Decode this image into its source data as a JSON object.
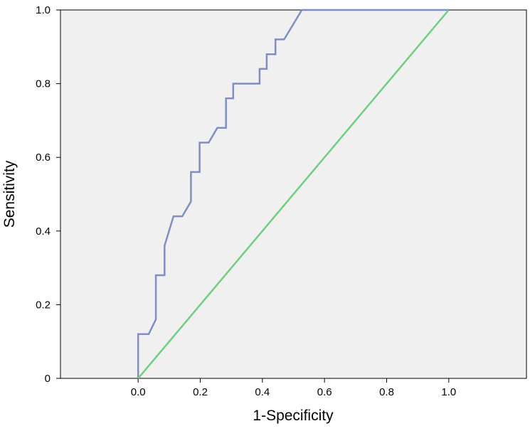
{
  "chart_data": {
    "type": "line",
    "title": "",
    "xlabel": "1-Specificity",
    "ylabel": "Sensitivity",
    "xlim": [
      -0.25,
      1.25
    ],
    "ylim": [
      0,
      1.0
    ],
    "x_ticks": [
      {
        "value": 0.0,
        "label": "0.0"
      },
      {
        "value": 0.2,
        "label": "0.2"
      },
      {
        "value": 0.4,
        "label": "0.4"
      },
      {
        "value": 0.6,
        "label": "0.6"
      },
      {
        "value": 0.8,
        "label": "0.8"
      },
      {
        "value": 1.0,
        "label": "1.0"
      }
    ],
    "y_ticks": [
      {
        "value": 0.0,
        "label": "0"
      },
      {
        "value": 0.2,
        "label": "0.2"
      },
      {
        "value": 0.4,
        "label": "0.4"
      },
      {
        "value": 0.6,
        "label": "0.6"
      },
      {
        "value": 0.8,
        "label": "0.8"
      },
      {
        "value": 1.0,
        "label": "1.0"
      }
    ],
    "grid": false,
    "plot_background": "#f0f0f0",
    "series": [
      {
        "color": "#7f8ec4",
        "step": true,
        "points": [
          [
            0.0,
            0.0
          ],
          [
            0.0,
            0.12
          ],
          [
            0.034,
            0.12
          ],
          [
            0.057,
            0.16
          ],
          [
            0.057,
            0.28
          ],
          [
            0.085,
            0.28
          ],
          [
            0.085,
            0.36
          ],
          [
            0.114,
            0.44
          ],
          [
            0.142,
            0.44
          ],
          [
            0.17,
            0.48
          ],
          [
            0.17,
            0.56
          ],
          [
            0.198,
            0.56
          ],
          [
            0.198,
            0.64
          ],
          [
            0.227,
            0.64
          ],
          [
            0.255,
            0.68
          ],
          [
            0.283,
            0.68
          ],
          [
            0.283,
            0.76
          ],
          [
            0.306,
            0.76
          ],
          [
            0.306,
            0.8
          ],
          [
            0.391,
            0.8
          ],
          [
            0.391,
            0.84
          ],
          [
            0.414,
            0.84
          ],
          [
            0.414,
            0.88
          ],
          [
            0.442,
            0.88
          ],
          [
            0.442,
            0.92
          ],
          [
            0.47,
            0.92
          ],
          [
            0.527,
            1.0
          ],
          [
            1.0,
            1.0
          ]
        ]
      },
      {
        "color": "#6fcf7f",
        "step": false,
        "points": [
          [
            0.0,
            0.0
          ],
          [
            1.0,
            1.0
          ]
        ]
      }
    ]
  }
}
